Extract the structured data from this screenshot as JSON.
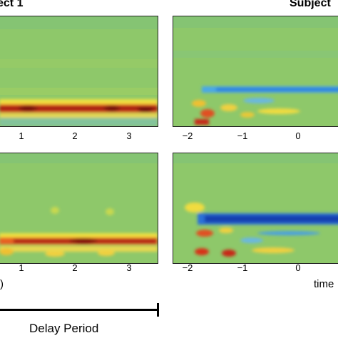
{
  "titles": {
    "left": "ect 1",
    "right": "Subject"
  },
  "panels": [
    {
      "name": "top-left",
      "band_color": "red"
    },
    {
      "name": "top-right",
      "band_color": "blue"
    },
    {
      "name": "bottom-left",
      "band_color": "red"
    },
    {
      "name": "bottom-right",
      "band_color": "blue"
    }
  ],
  "ticks": {
    "left_top": [
      "1",
      "2",
      "3"
    ],
    "right_top": [
      "−2",
      "−1",
      "0"
    ],
    "left_bottom": [
      "1",
      "2",
      "3"
    ],
    "right_bottom": [
      "−2",
      "−1",
      "0"
    ]
  },
  "axis_labels": {
    "left_fragment": ")",
    "right_fragment": "time"
  },
  "caption": "Delay Period",
  "colors": {
    "background": "#8ec86a",
    "red": "#c8281a",
    "blue": "#1a50c8",
    "cyan": "#5ab4e6",
    "yellow": "#e6dc3c"
  }
}
